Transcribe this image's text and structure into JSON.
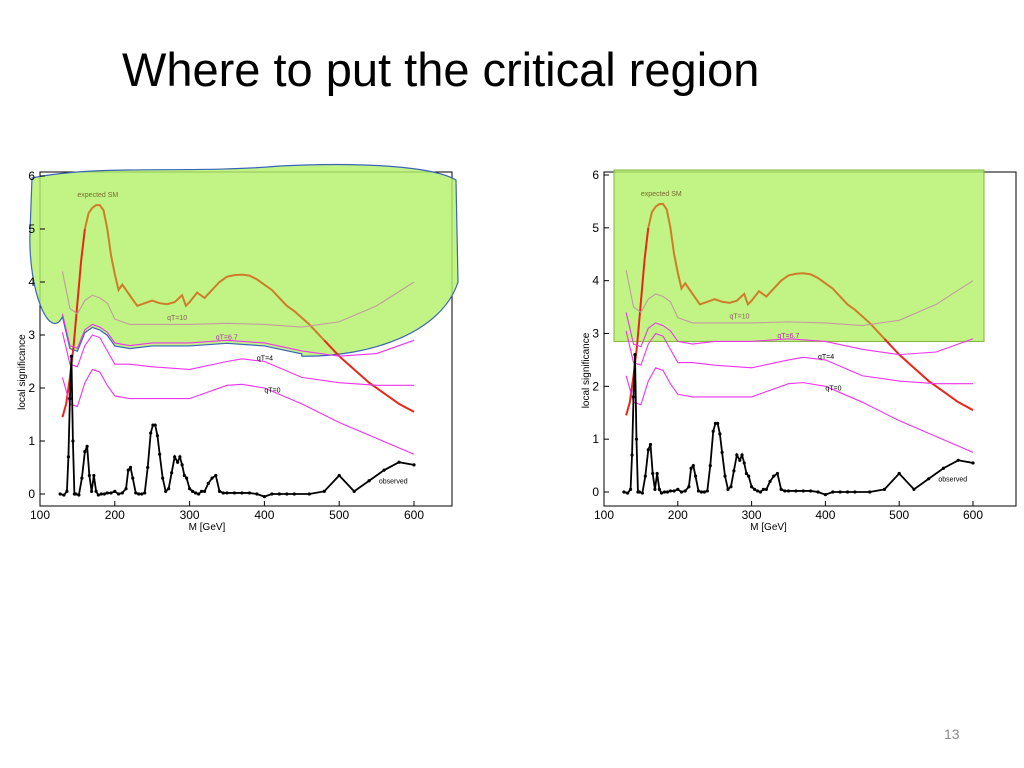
{
  "slide": {
    "title": "Where to put the critical region",
    "page_number": "13"
  },
  "colors": {
    "observed": "#000000",
    "expected_sm_low": "#e8271a",
    "expected_sm_high": "#cf7c2a",
    "threshold_curves": "#ee33ee",
    "qr10_curve": "#c49aa0",
    "critical_region_fill": "#b5f26a",
    "critical_region_outline": "#3a66b8"
  },
  "chart_data": [
    {
      "type": "line",
      "critical_region": "hand-drawn region above the qT=6.7 curve",
      "xlabel": "M [GeV]",
      "ylabel": "local significance",
      "xlim": [
        100,
        650
      ],
      "ylim": [
        -0.2,
        6.1
      ],
      "x_ticks": [
        "100",
        "200",
        "300",
        "400",
        "500",
        "600"
      ],
      "y_ticks": [
        "0",
        "1",
        "2",
        "3",
        "4",
        "5",
        "6"
      ],
      "annotations": [
        "expected SM",
        "observed"
      ],
      "series": [
        {
          "name": "expected SM",
          "x": [
            130,
            135,
            140,
            145,
            150,
            155,
            160,
            165,
            170,
            175,
            180,
            185,
            190,
            195,
            200,
            205,
            210,
            215,
            220,
            225,
            230,
            240,
            250,
            260,
            270,
            280,
            290,
            295,
            300,
            310,
            320,
            330,
            340,
            350,
            360,
            370,
            380,
            390,
            400,
            410,
            420,
            430,
            440,
            460,
            480,
            500,
            520,
            540,
            560,
            580,
            600
          ],
          "y": [
            1.45,
            1.7,
            2.2,
            2.8,
            3.6,
            4.4,
            5.0,
            5.3,
            5.4,
            5.45,
            5.45,
            5.35,
            5.0,
            4.5,
            4.15,
            3.85,
            3.95,
            3.85,
            3.75,
            3.65,
            3.55,
            3.6,
            3.65,
            3.6,
            3.58,
            3.62,
            3.75,
            3.55,
            3.62,
            3.8,
            3.7,
            3.85,
            4.0,
            4.1,
            4.13,
            4.14,
            4.12,
            4.05,
            3.95,
            3.85,
            3.7,
            3.55,
            3.45,
            3.2,
            2.9,
            2.6,
            2.35,
            2.1,
            1.9,
            1.7,
            1.55
          ]
        },
        {
          "name": "qT=10",
          "x": [
            130,
            140,
            150,
            160,
            170,
            180,
            190,
            200,
            220,
            250,
            300,
            350,
            400,
            450,
            500,
            550,
            600
          ],
          "y": [
            4.2,
            3.5,
            3.4,
            3.65,
            3.75,
            3.7,
            3.6,
            3.3,
            3.2,
            3.2,
            3.2,
            3.22,
            3.2,
            3.15,
            3.25,
            3.55,
            4.0
          ]
        },
        {
          "name": "qT=6.7",
          "x": [
            130,
            140,
            150,
            160,
            170,
            180,
            190,
            200,
            220,
            250,
            300,
            350,
            400,
            450,
            500,
            550,
            600
          ],
          "y": [
            3.4,
            2.8,
            2.75,
            3.1,
            3.2,
            3.15,
            3.05,
            2.85,
            2.8,
            2.85,
            2.85,
            2.9,
            2.85,
            2.7,
            2.6,
            2.65,
            2.9
          ]
        },
        {
          "name": "qT=4",
          "x": [
            130,
            140,
            150,
            160,
            170,
            180,
            190,
            200,
            220,
            250,
            300,
            350,
            370,
            400,
            450,
            500,
            550,
            600
          ],
          "y": [
            3.05,
            2.45,
            2.4,
            2.8,
            3.0,
            2.95,
            2.7,
            2.45,
            2.45,
            2.4,
            2.35,
            2.5,
            2.55,
            2.5,
            2.2,
            2.1,
            2.05,
            2.05
          ]
        },
        {
          "name": "qT=0",
          "x": [
            130,
            140,
            150,
            160,
            170,
            180,
            190,
            200,
            220,
            250,
            300,
            350,
            370,
            400,
            450,
            500,
            550,
            600
          ],
          "y": [
            2.2,
            1.7,
            1.65,
            2.1,
            2.35,
            2.3,
            2.05,
            1.85,
            1.8,
            1.8,
            1.8,
            2.05,
            2.07,
            2.0,
            1.7,
            1.35,
            1.05,
            0.75
          ]
        },
        {
          "name": "observed",
          "x": [
            127,
            132,
            136,
            138,
            140,
            142,
            144,
            146,
            148,
            152,
            156,
            160,
            163,
            166,
            169,
            172,
            175,
            178,
            182,
            186,
            190,
            195,
            200,
            205,
            210,
            215,
            218,
            221,
            224,
            228,
            232,
            236,
            240,
            244,
            248,
            251,
            254,
            257,
            260,
            264,
            268,
            272,
            276,
            280,
            284,
            287,
            290,
            293,
            296,
            300,
            304,
            308,
            312,
            316,
            320,
            325,
            330,
            335,
            340,
            345,
            350,
            360,
            370,
            380,
            390,
            400,
            410,
            420,
            430,
            440,
            460,
            480,
            500,
            520,
            540,
            560,
            580,
            600
          ],
          "y": [
            0.0,
            -0.02,
            0.05,
            0.7,
            1.8,
            2.6,
            1.0,
            0.0,
            0.0,
            -0.02,
            0.3,
            0.8,
            0.9,
            0.35,
            0.05,
            0.35,
            0.05,
            -0.02,
            0.0,
            0.0,
            0.02,
            0.02,
            0.05,
            0.0,
            0.02,
            0.1,
            0.45,
            0.5,
            0.3,
            0.02,
            0.0,
            0.0,
            0.02,
            0.5,
            1.15,
            1.3,
            1.3,
            1.1,
            0.75,
            0.3,
            0.05,
            0.1,
            0.4,
            0.7,
            0.6,
            0.7,
            0.55,
            0.35,
            0.3,
            0.1,
            0.05,
            0.02,
            0.0,
            0.05,
            0.05,
            0.2,
            0.3,
            0.35,
            0.05,
            0.02,
            0.02,
            0.02,
            0.02,
            0.02,
            0.0,
            -0.05,
            0.0,
            0.0,
            0.0,
            0.0,
            0.0,
            0.05,
            0.35,
            0.05,
            0.25,
            0.45,
            0.6,
            0.55
          ]
        }
      ]
    },
    {
      "type": "line",
      "critical_region": "rectangular region above about 2.9",
      "xlabel": "M [GeV]",
      "ylabel": "local significance",
      "xlim": [
        100,
        650
      ],
      "ylim": [
        -0.2,
        6.1
      ],
      "x_ticks": [
        "100",
        "200",
        "300",
        "400",
        "500",
        "600"
      ],
      "y_ticks": [
        "0",
        "1",
        "2",
        "3",
        "4",
        "5",
        "6"
      ],
      "annotations": [
        "expected SM",
        "observed"
      ],
      "series": [
        {
          "name": "expected SM",
          "x": [
            130,
            135,
            140,
            145,
            150,
            155,
            160,
            165,
            170,
            175,
            180,
            185,
            190,
            195,
            200,
            205,
            210,
            215,
            220,
            225,
            230,
            240,
            250,
            260,
            270,
            280,
            290,
            295,
            300,
            310,
            320,
            330,
            340,
            350,
            360,
            370,
            380,
            390,
            400,
            410,
            420,
            430,
            440,
            460,
            480,
            500,
            520,
            540,
            560,
            580,
            600
          ],
          "y": [
            1.45,
            1.7,
            2.2,
            2.8,
            3.6,
            4.4,
            5.0,
            5.3,
            5.4,
            5.45,
            5.45,
            5.35,
            5.0,
            4.5,
            4.15,
            3.85,
            3.95,
            3.85,
            3.75,
            3.65,
            3.55,
            3.6,
            3.65,
            3.6,
            3.58,
            3.62,
            3.75,
            3.55,
            3.62,
            3.8,
            3.7,
            3.85,
            4.0,
            4.1,
            4.13,
            4.14,
            4.12,
            4.05,
            3.95,
            3.85,
            3.7,
            3.55,
            3.45,
            3.2,
            2.9,
            2.6,
            2.35,
            2.1,
            1.9,
            1.7,
            1.55
          ]
        },
        {
          "name": "qT=10",
          "x": [
            130,
            140,
            150,
            160,
            170,
            180,
            190,
            200,
            220,
            250,
            300,
            350,
            400,
            450,
            500,
            550,
            600
          ],
          "y": [
            4.2,
            3.5,
            3.4,
            3.65,
            3.75,
            3.7,
            3.6,
            3.3,
            3.2,
            3.2,
            3.2,
            3.22,
            3.2,
            3.15,
            3.25,
            3.55,
            4.0
          ]
        },
        {
          "name": "qT=6.7",
          "x": [
            130,
            140,
            150,
            160,
            170,
            180,
            190,
            200,
            220,
            250,
            300,
            350,
            400,
            450,
            500,
            550,
            600
          ],
          "y": [
            3.4,
            2.8,
            2.75,
            3.1,
            3.2,
            3.15,
            3.05,
            2.85,
            2.8,
            2.85,
            2.85,
            2.9,
            2.85,
            2.7,
            2.6,
            2.65,
            2.9
          ]
        },
        {
          "name": "qT=4",
          "x": [
            130,
            140,
            150,
            160,
            170,
            180,
            190,
            200,
            220,
            250,
            300,
            350,
            370,
            400,
            450,
            500,
            550,
            600
          ],
          "y": [
            3.05,
            2.45,
            2.4,
            2.8,
            3.0,
            2.95,
            2.7,
            2.45,
            2.45,
            2.4,
            2.35,
            2.5,
            2.55,
            2.5,
            2.2,
            2.1,
            2.05,
            2.05
          ]
        },
        {
          "name": "qT=0",
          "x": [
            130,
            140,
            150,
            160,
            170,
            180,
            190,
            200,
            220,
            250,
            300,
            350,
            370,
            400,
            450,
            500,
            550,
            600
          ],
          "y": [
            2.2,
            1.7,
            1.65,
            2.1,
            2.35,
            2.3,
            2.05,
            1.85,
            1.8,
            1.8,
            1.8,
            2.05,
            2.07,
            2.0,
            1.7,
            1.35,
            1.05,
            0.75
          ]
        },
        {
          "name": "observed",
          "x": [
            127,
            132,
            136,
            138,
            140,
            142,
            144,
            146,
            148,
            152,
            156,
            160,
            163,
            166,
            169,
            172,
            175,
            178,
            182,
            186,
            190,
            195,
            200,
            205,
            210,
            215,
            218,
            221,
            224,
            228,
            232,
            236,
            240,
            244,
            248,
            251,
            254,
            257,
            260,
            264,
            268,
            272,
            276,
            280,
            284,
            287,
            290,
            293,
            296,
            300,
            304,
            308,
            312,
            316,
            320,
            325,
            330,
            335,
            340,
            345,
            350,
            360,
            370,
            380,
            390,
            400,
            410,
            420,
            430,
            440,
            460,
            480,
            500,
            520,
            540,
            560,
            580,
            600
          ],
          "y": [
            0.0,
            -0.02,
            0.05,
            0.7,
            1.8,
            2.6,
            1.0,
            0.0,
            0.0,
            -0.02,
            0.3,
            0.8,
            0.9,
            0.35,
            0.05,
            0.35,
            0.05,
            -0.02,
            0.0,
            0.0,
            0.02,
            0.02,
            0.05,
            0.0,
            0.02,
            0.1,
            0.45,
            0.5,
            0.3,
            0.02,
            0.0,
            0.0,
            0.02,
            0.5,
            1.15,
            1.3,
            1.3,
            1.1,
            0.75,
            0.3,
            0.05,
            0.1,
            0.4,
            0.7,
            0.6,
            0.7,
            0.55,
            0.35,
            0.3,
            0.1,
            0.05,
            0.02,
            0.0,
            0.05,
            0.05,
            0.2,
            0.3,
            0.35,
            0.05,
            0.02,
            0.02,
            0.02,
            0.02,
            0.02,
            0.0,
            -0.05,
            0.0,
            0.0,
            0.0,
            0.0,
            0.0,
            0.05,
            0.35,
            0.05,
            0.25,
            0.45,
            0.6,
            0.55
          ]
        }
      ]
    }
  ]
}
